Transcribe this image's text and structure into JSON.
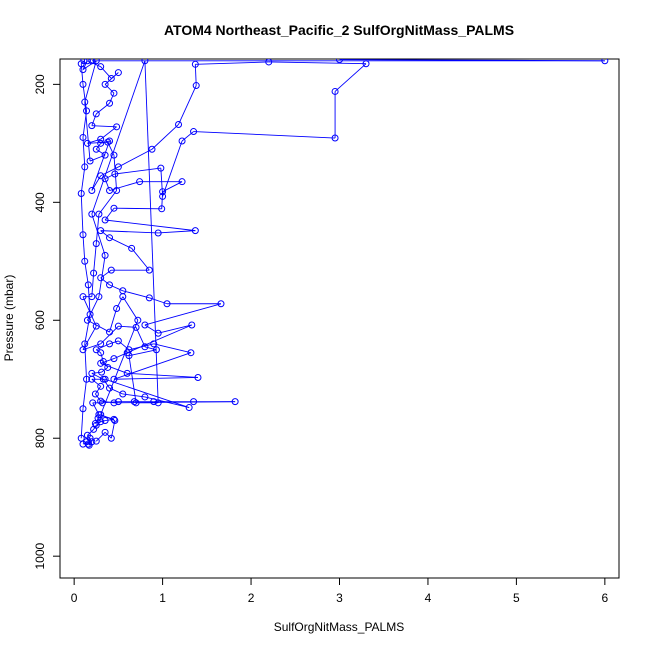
{
  "chart_data": {
    "type": "line",
    "title": "ATOM4 Northeast_Pacific_2 SulfOrgNitMass_PALMS",
    "xlabel": "SulfOrgNitMass_PALMS",
    "ylabel": "Pressure (mbar)",
    "xlim": [
      -0.16,
      6.16
    ],
    "ylim": [
      1037,
      157
    ],
    "y_reversed": true,
    "grid": false,
    "legend": "none",
    "x_ticks": [
      {
        "value": 0,
        "label": "0"
      },
      {
        "value": 1,
        "label": "1"
      },
      {
        "value": 2,
        "label": "2"
      },
      {
        "value": 3,
        "label": "3"
      },
      {
        "value": 4,
        "label": "4"
      },
      {
        "value": 5,
        "label": "5"
      },
      {
        "value": 6,
        "label": "6"
      }
    ],
    "y_ticks": [
      {
        "value": 200,
        "label": "200"
      },
      {
        "value": 400,
        "label": "400"
      },
      {
        "value": 600,
        "label": "600"
      },
      {
        "value": 800,
        "label": "800"
      },
      {
        "value": 1000,
        "label": "1000"
      }
    ],
    "colors": {
      "series": "#0000ff",
      "axis": "#000000",
      "background": "#ffffff"
    },
    "series": [
      {
        "points": [
          [
            0.1,
            810
          ],
          [
            0.14,
            806
          ],
          [
            0.16,
            810
          ],
          [
            0.18,
            800
          ],
          [
            0.17,
            812
          ],
          [
            0.2,
            806
          ],
          [
            0.15,
            795
          ],
          [
            0.22,
            785
          ],
          [
            0.25,
            778
          ],
          [
            0.3,
            772
          ],
          [
            0.27,
            766
          ],
          [
            0.24,
            775
          ],
          [
            0.35,
            770
          ],
          [
            0.45,
            768
          ],
          [
            0.28,
            760
          ],
          [
            0.21,
            740
          ],
          [
            0.32,
            740
          ],
          [
            0.5,
            738
          ],
          [
            0.68,
            738
          ],
          [
            0.9,
            738
          ],
          [
            1.35,
            738
          ],
          [
            1.82,
            738
          ],
          [
            0.45,
            740
          ],
          [
            0.3,
            737
          ],
          [
            0.24,
            725
          ],
          [
            0.3,
            712
          ],
          [
            0.2,
            700
          ],
          [
            0.35,
            700
          ],
          [
            1.3,
            748
          ],
          [
            0.8,
            730
          ],
          [
            0.55,
            725
          ],
          [
            0.4,
            715
          ],
          [
            0.33,
            700
          ],
          [
            0.2,
            690
          ],
          [
            0.31,
            688
          ],
          [
            0.38,
            680
          ],
          [
            0.33,
            670
          ],
          [
            0.3,
            655
          ],
          [
            0.25,
            650
          ],
          [
            0.4,
            640
          ],
          [
            0.5,
            635
          ],
          [
            0.62,
            650
          ],
          [
            0.9,
            640
          ],
          [
            1.32,
            655
          ],
          [
            0.45,
            700
          ],
          [
            1.4,
            697
          ],
          [
            0.6,
            690
          ],
          [
            0.3,
            673
          ],
          [
            0.45,
            665
          ],
          [
            0.6,
            655
          ],
          [
            1.33,
            608
          ],
          [
            0.95,
            622
          ],
          [
            0.8,
            608
          ],
          [
            1.66,
            572
          ],
          [
            1.05,
            572
          ],
          [
            0.85,
            562
          ],
          [
            0.55,
            550
          ],
          [
            0.4,
            540
          ],
          [
            0.3,
            528
          ],
          [
            0.42,
            515
          ],
          [
            0.85,
            515
          ],
          [
            0.65,
            478
          ],
          [
            0.4,
            460
          ],
          [
            0.3,
            448
          ],
          [
            0.95,
            452
          ],
          [
            1.37,
            448
          ],
          [
            0.35,
            430
          ],
          [
            0.45,
            410
          ],
          [
            0.99,
            411
          ],
          [
            1.0,
            382
          ],
          [
            1.22,
            365
          ],
          [
            0.74,
            365
          ],
          [
            0.4,
            380
          ],
          [
            0.35,
            360
          ],
          [
            0.46,
            352
          ],
          [
            0.98,
            342
          ],
          [
            1.0,
            390
          ],
          [
            1.22,
            296
          ],
          [
            1.35,
            280
          ],
          [
            2.95,
            291
          ],
          [
            2.95,
            212
          ],
          [
            3.3,
            165
          ],
          [
            2.2,
            162
          ],
          [
            1.37,
            166
          ],
          [
            1.38,
            202
          ],
          [
            1.18,
            268
          ],
          [
            0.88,
            310
          ],
          [
            0.5,
            340
          ],
          [
            0.3,
            355
          ],
          [
            0.2,
            380
          ],
          [
            0.4,
            296
          ],
          [
            0.3,
            300
          ],
          [
            0.25,
            310
          ],
          [
            0.35,
            320
          ],
          [
            0.18,
            330
          ],
          [
            0.12,
            230
          ],
          [
            0.25,
            160
          ],
          [
            0.1,
            175
          ],
          [
            0.15,
            160
          ],
          [
            0.3,
            170
          ],
          [
            0.42,
            190
          ],
          [
            0.5,
            180
          ],
          [
            0.35,
            200
          ],
          [
            0.45,
            215
          ],
          [
            0.4,
            232
          ],
          [
            0.25,
            250
          ],
          [
            0.2,
            270
          ],
          [
            0.48,
            272
          ],
          [
            0.3,
            293
          ],
          [
            0.15,
            300
          ],
          [
            0.38,
            298
          ],
          [
            0.45,
            320
          ],
          [
            0.48,
            380
          ],
          [
            0.28,
            420
          ],
          [
            0.25,
            470
          ],
          [
            0.22,
            520
          ],
          [
            0.2,
            560
          ],
          [
            0.1,
            560
          ],
          [
            0.25,
            610
          ],
          [
            0.1,
            650
          ],
          [
            0.3,
            640
          ],
          [
            0.5,
            610
          ],
          [
            0.7,
            612
          ],
          [
            0.8,
            645
          ],
          [
            0.93,
            650
          ],
          [
            0.62,
            660
          ],
          [
            0.7,
            740
          ],
          [
            0.95,
            740
          ],
          [
            0.8,
            160
          ],
          [
            0.2,
            420
          ],
          [
            0.35,
            490
          ],
          [
            0.28,
            560
          ],
          [
            0.15,
            600
          ],
          [
            0.4,
            620
          ],
          [
            0.48,
            580
          ],
          [
            0.55,
            560
          ],
          [
            0.72,
            600
          ],
          [
            0.3,
            760
          ],
          [
            0.46,
            770
          ],
          [
            0.42,
            800
          ],
          [
            0.35,
            790
          ],
          [
            0.25,
            805
          ]
        ]
      },
      {
        "points": [
          [
            0.08,
            800
          ],
          [
            0.1,
            750
          ],
          [
            0.14,
            700
          ],
          [
            0.12,
            640
          ],
          [
            0.18,
            590
          ],
          [
            0.16,
            540
          ],
          [
            0.12,
            500
          ],
          [
            0.1,
            455
          ],
          [
            0.08,
            385
          ],
          [
            0.12,
            340
          ],
          [
            0.1,
            290
          ],
          [
            0.14,
            245
          ],
          [
            0.1,
            200
          ],
          [
            0.08,
            165
          ],
          [
            0.11,
            160
          ]
        ]
      },
      {
        "points": [
          [
            0.2,
            160
          ],
          [
            6.0,
            160
          ],
          [
            3.0,
            158
          ]
        ]
      }
    ]
  }
}
